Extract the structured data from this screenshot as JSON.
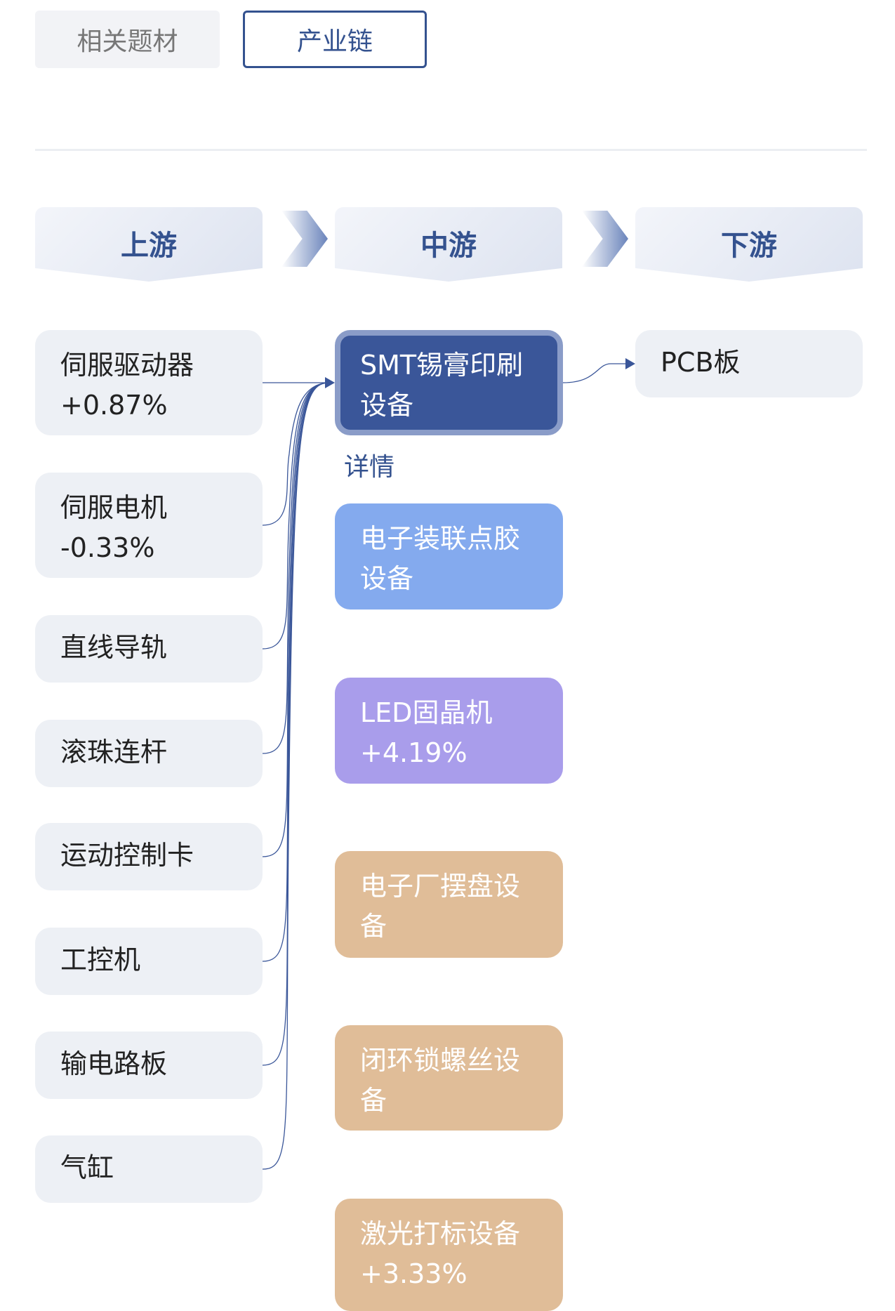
{
  "tabs": [
    "相关题材",
    "产业链"
  ],
  "active_tab": "产业链",
  "stages": [
    "上游",
    "中游",
    "下游"
  ],
  "upstream": [
    {
      "name": "伺服驱动器",
      "change": "+0.87%"
    },
    {
      "name": "伺服电机",
      "change": "-0.33%"
    },
    {
      "name": "直线导轨",
      "change": ""
    },
    {
      "name": "滚珠连杆",
      "change": ""
    },
    {
      "name": "运动控制卡",
      "change": ""
    },
    {
      "name": "工控机",
      "change": ""
    },
    {
      "name": "输电路板",
      "change": ""
    },
    {
      "name": "气缸",
      "change": ""
    }
  ],
  "midstream": [
    {
      "name": "SMT锡膏印刷\n设备",
      "change": "",
      "color": "#3a5699"
    },
    {
      "name": "电子装联点胶\n设备",
      "change": "",
      "color": "#84aaee"
    },
    {
      "name": "LED固晶机",
      "change": "+4.19%",
      "color": "#a99deb"
    },
    {
      "name": "电子厂摆盘设\n备",
      "change": "",
      "color": "#e0bd98"
    },
    {
      "name": "闭环锁螺丝设\n备",
      "change": "",
      "color": "#e0bd98"
    },
    {
      "name": "激光打标设备",
      "change": "+3.33%",
      "color": "#e0bd98"
    }
  ],
  "detail_label": "详情",
  "downstream": [
    {
      "name": "PCB板"
    }
  ],
  "colors": {
    "accent": "#34528f",
    "line": "#3a5699"
  }
}
